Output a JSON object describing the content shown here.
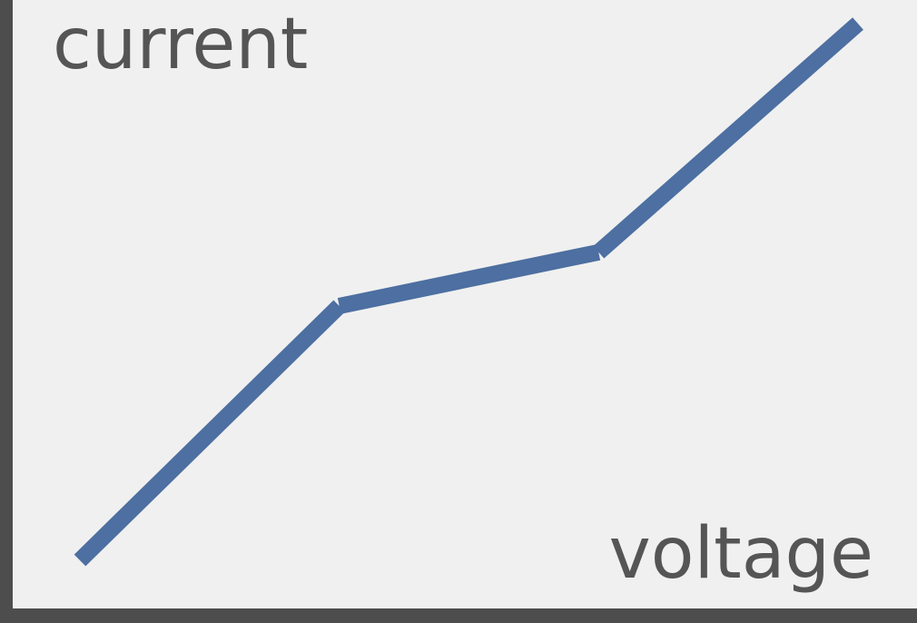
{
  "chart_data": {
    "type": "line",
    "title": "",
    "xlabel": "voltage",
    "ylabel": "current",
    "x": [
      0,
      1,
      2,
      3
    ],
    "y": [
      0,
      1.09,
      1.32,
      2.3
    ],
    "xlim": [
      0,
      3
    ],
    "ylim": [
      0,
      2.3
    ],
    "grid": false,
    "axes": [
      "left",
      "bottom"
    ],
    "tick_labels": false,
    "colors": {
      "background": "#f0f0f0",
      "line": "#4d6fa1",
      "axis": "#4d4d4d",
      "text": "#555555"
    }
  }
}
